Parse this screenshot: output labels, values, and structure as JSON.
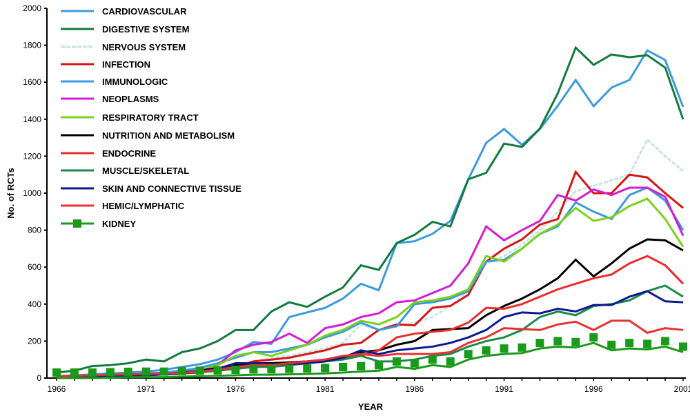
{
  "chart_data": {
    "type": "line",
    "title": "",
    "xlabel": "YEAR",
    "ylabel": "No. of RCTs",
    "xlim": [
      1966,
      2001
    ],
    "ylim": [
      0,
      2000
    ],
    "x_ticks": [
      "1966",
      "1971",
      "1976",
      "1981",
      "1986",
      "1991",
      "1996",
      "2001"
    ],
    "y_ticks": [
      "0",
      "200",
      "400",
      "600",
      "800",
      "1000",
      "1200",
      "1400",
      "1600",
      "1800",
      "2000"
    ],
    "grid": false,
    "legend_position": "top-left",
    "x": [
      1966,
      1967,
      1968,
      1969,
      1970,
      1971,
      1972,
      1973,
      1974,
      1975,
      1976,
      1977,
      1978,
      1979,
      1980,
      1981,
      1982,
      1983,
      1984,
      1985,
      1986,
      1987,
      1988,
      1989,
      1990,
      1991,
      1992,
      1993,
      1994,
      1995,
      1996,
      1997,
      1998,
      1999,
      2000,
      2001
    ],
    "series": [
      {
        "name": "CARDIOVASCULAR",
        "color": "#3a9ae0",
        "values": [
          10,
          15,
          20,
          25,
          30,
          35,
          45,
          60,
          75,
          100,
          140,
          195,
          185,
          330,
          355,
          380,
          430,
          510,
          475,
          730,
          740,
          780,
          850,
          1075,
          1272,
          1347,
          1261,
          1347,
          1473,
          1612,
          1470,
          1571,
          1612,
          1772,
          1720,
          1466
        ]
      },
      {
        "name": "DIGESTIVE SYSTEM",
        "color": "#127a3e",
        "values": [
          30,
          40,
          65,
          70,
          80,
          100,
          90,
          140,
          160,
          200,
          260,
          260,
          360,
          410,
          385,
          440,
          490,
          610,
          585,
          730,
          775,
          845,
          820,
          1075,
          1110,
          1268,
          1250,
          1350,
          1540,
          1787,
          1694,
          1750,
          1735,
          1746,
          1679,
          1399
        ]
      },
      {
        "name": "NERVOUS SYSTEM",
        "color": "#c8e4e4",
        "dashed": true,
        "values": [
          5,
          8,
          10,
          12,
          15,
          18,
          20,
          25,
          30,
          45,
          70,
          90,
          110,
          120,
          140,
          160,
          190,
          290,
          260,
          280,
          300,
          330,
          390,
          470,
          620,
          660,
          720,
          800,
          900,
          1010,
          1040,
          1070,
          1100,
          1290,
          1200,
          1120
        ]
      },
      {
        "name": "INFECTION",
        "color": "#d91414",
        "values": [
          10,
          12,
          15,
          18,
          20,
          22,
          25,
          30,
          35,
          45,
          60,
          90,
          100,
          110,
          130,
          150,
          180,
          190,
          260,
          290,
          285,
          380,
          390,
          450,
          630,
          700,
          750,
          830,
          860,
          1115,
          1000,
          1000,
          1100,
          1085,
          1000,
          920
        ]
      },
      {
        "name": "IMMUNOLOGIC",
        "color": "#3a9ae0",
        "values": [
          10,
          12,
          15,
          18,
          20,
          25,
          30,
          40,
          55,
          80,
          110,
          140,
          140,
          160,
          180,
          220,
          250,
          300,
          260,
          280,
          400,
          410,
          430,
          470,
          630,
          640,
          700,
          780,
          820,
          950,
          900,
          860,
          990,
          1030,
          960,
          800
        ]
      },
      {
        "name": "NEOPLASMS",
        "color": "#d61ad6",
        "values": [
          5,
          5,
          8,
          10,
          12,
          15,
          20,
          25,
          40,
          70,
          150,
          180,
          195,
          240,
          190,
          270,
          290,
          330,
          350,
          410,
          420,
          460,
          500,
          620,
          820,
          745,
          800,
          850,
          990,
          960,
          1020,
          990,
          1030,
          1030,
          980,
          770
        ]
      },
      {
        "name": "RESPIRATORY TRACT",
        "color": "#7ad11a",
        "values": [
          5,
          8,
          10,
          12,
          15,
          18,
          22,
          28,
          40,
          70,
          120,
          140,
          120,
          150,
          180,
          230,
          260,
          310,
          290,
          330,
          410,
          420,
          440,
          480,
          660,
          630,
          700,
          780,
          830,
          920,
          850,
          870,
          930,
          970,
          860,
          710
        ]
      },
      {
        "name": "NUTRITION AND METABOLISM",
        "color": "#000000",
        "values": [
          5,
          8,
          10,
          12,
          15,
          18,
          22,
          30,
          40,
          55,
          70,
          80,
          80,
          85,
          90,
          100,
          110,
          140,
          150,
          180,
          200,
          260,
          265,
          270,
          340,
          390,
          430,
          480,
          540,
          640,
          550,
          620,
          700,
          750,
          745,
          690
        ]
      },
      {
        "name": "ENDOCRINE",
        "color": "#ee2a2a",
        "values": [
          5,
          8,
          10,
          12,
          15,
          18,
          22,
          28,
          35,
          45,
          60,
          70,
          70,
          80,
          90,
          100,
          110,
          120,
          150,
          220,
          240,
          250,
          260,
          300,
          380,
          375,
          400,
          440,
          480,
          510,
          540,
          560,
          620,
          660,
          610,
          510
        ]
      },
      {
        "name": "MUSCLE/SKELETAL",
        "color": "#1a8a4a",
        "values": [
          5,
          8,
          10,
          12,
          15,
          18,
          20,
          25,
          30,
          40,
          50,
          60,
          60,
          70,
          80,
          90,
          100,
          120,
          90,
          90,
          100,
          120,
          130,
          170,
          200,
          220,
          260,
          330,
          360,
          340,
          390,
          400,
          420,
          470,
          500,
          440
        ]
      },
      {
        "name": "SKIN AND CONNECTIVE TISSUE",
        "color": "#0a1a90",
        "values": [
          0,
          5,
          8,
          10,
          12,
          15,
          20,
          25,
          35,
          50,
          80,
          80,
          75,
          75,
          80,
          90,
          110,
          150,
          130,
          150,
          160,
          170,
          190,
          220,
          260,
          330,
          355,
          350,
          375,
          360,
          395,
          395,
          440,
          470,
          415,
          410
        ]
      },
      {
        "name": "HEMIC/LYMPHATIC",
        "color": "#e83030",
        "values": [
          10,
          12,
          15,
          18,
          20,
          22,
          25,
          28,
          35,
          45,
          60,
          70,
          70,
          80,
          90,
          100,
          120,
          130,
          120,
          130,
          130,
          130,
          140,
          190,
          220,
          270,
          265,
          260,
          290,
          305,
          260,
          310,
          310,
          245,
          270,
          260
        ]
      },
      {
        "name": "KIDNEY",
        "color": "#1a9a1a",
        "marker": "square",
        "values": [
          0,
          0,
          0,
          2,
          4,
          5,
          5,
          8,
          10,
          12,
          15,
          18,
          18,
          20,
          22,
          25,
          30,
          35,
          40,
          60,
          50,
          70,
          60,
          100,
          120,
          130,
          135,
          160,
          170,
          165,
          190,
          150,
          160,
          155,
          170,
          140
        ]
      }
    ]
  }
}
